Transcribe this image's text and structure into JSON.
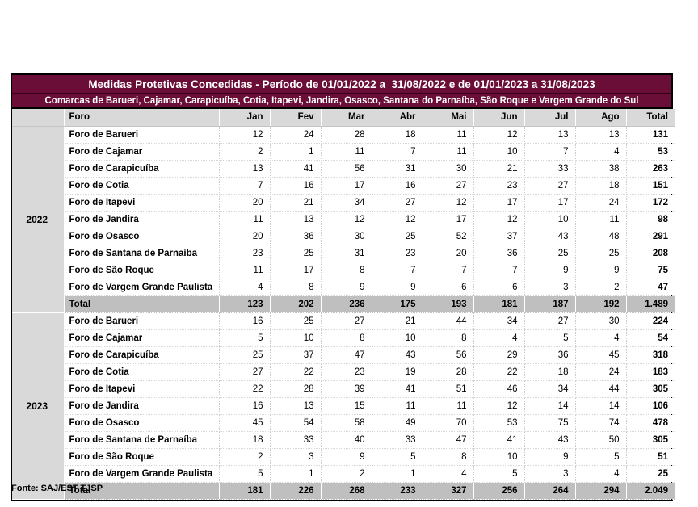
{
  "report": {
    "title": "Medidas Protetivas Concedidas - Período de 01/01/2022 a  31/08/2022 e de 01/01/2023 a 31/08/2023",
    "subtitle": "Comarcas de Barueri, Cajamar, Carapicuíba, Cotia, Itapevi, Jandira, Osasco, Santana do Parnaíba, São Roque e Vargem Grande do Sul",
    "source": "Fonte: SAJ/EST TJSP"
  },
  "colors": {
    "title_bg": "#6A0D37",
    "title_text": "#FFFFFF",
    "header_row_bg": "#D9D9D9",
    "year_col_bg": "#D9D9D9",
    "total_row_bg": "#BFBFBF",
    "body_text": "#000000"
  },
  "columns": [
    "Foro",
    "Jan",
    "Fev",
    "Mar",
    "Abr",
    "Mai",
    "Jun",
    "Jul",
    "Ago",
    "Total"
  ],
  "sections": [
    {
      "year": "2022",
      "rows": [
        {
          "foro": "Foro de Barueri",
          "values": [
            "12",
            "24",
            "28",
            "18",
            "11",
            "12",
            "13",
            "13"
          ],
          "total": "131"
        },
        {
          "foro": "Foro de Cajamar",
          "values": [
            "2",
            "1",
            "11",
            "7",
            "11",
            "10",
            "7",
            "4"
          ],
          "total": "53"
        },
        {
          "foro": "Foro de Carapicuíba",
          "values": [
            "13",
            "41",
            "56",
            "31",
            "30",
            "21",
            "33",
            "38"
          ],
          "total": "263"
        },
        {
          "foro": "Foro de Cotia",
          "values": [
            "7",
            "16",
            "17",
            "16",
            "27",
            "23",
            "27",
            "18"
          ],
          "total": "151"
        },
        {
          "foro": "Foro de Itapevi",
          "values": [
            "20",
            "21",
            "34",
            "27",
            "12",
            "17",
            "17",
            "24"
          ],
          "total": "172"
        },
        {
          "foro": "Foro de Jandira",
          "values": [
            "11",
            "13",
            "12",
            "12",
            "17",
            "12",
            "10",
            "11"
          ],
          "total": "98"
        },
        {
          "foro": "Foro de Osasco",
          "values": [
            "20",
            "36",
            "30",
            "25",
            "52",
            "37",
            "43",
            "48"
          ],
          "total": "291"
        },
        {
          "foro": "Foro de Santana de Parnaíba",
          "values": [
            "23",
            "25",
            "31",
            "23",
            "20",
            "36",
            "25",
            "25"
          ],
          "total": "208"
        },
        {
          "foro": "Foro de São Roque",
          "values": [
            "11",
            "17",
            "8",
            "7",
            "7",
            "7",
            "9",
            "9"
          ],
          "total": "75"
        },
        {
          "foro": "Foro de Vargem Grande Paulista",
          "values": [
            "4",
            "8",
            "9",
            "9",
            "6",
            "6",
            "3",
            "2"
          ],
          "total": "47"
        }
      ],
      "total_row": {
        "label": "Total",
        "values": [
          "123",
          "202",
          "236",
          "175",
          "193",
          "181",
          "187",
          "192"
        ],
        "total": "1.489"
      }
    },
    {
      "year": "2023",
      "rows": [
        {
          "foro": "Foro de Barueri",
          "values": [
            "16",
            "25",
            "27",
            "21",
            "44",
            "34",
            "27",
            "30"
          ],
          "total": "224"
        },
        {
          "foro": "Foro de Cajamar",
          "values": [
            "5",
            "10",
            "8",
            "10",
            "8",
            "4",
            "5",
            "4"
          ],
          "total": "54"
        },
        {
          "foro": "Foro de Carapicuíba",
          "values": [
            "25",
            "37",
            "47",
            "43",
            "56",
            "29",
            "36",
            "45"
          ],
          "total": "318"
        },
        {
          "foro": "Foro de Cotia",
          "values": [
            "27",
            "22",
            "23",
            "19",
            "28",
            "22",
            "18",
            "24"
          ],
          "total": "183"
        },
        {
          "foro": "Foro de Itapevi",
          "values": [
            "22",
            "28",
            "39",
            "41",
            "51",
            "46",
            "34",
            "44"
          ],
          "total": "305"
        },
        {
          "foro": "Foro de Jandira",
          "values": [
            "16",
            "13",
            "15",
            "11",
            "11",
            "12",
            "14",
            "14"
          ],
          "total": "106"
        },
        {
          "foro": "Foro de Osasco",
          "values": [
            "45",
            "54",
            "58",
            "49",
            "70",
            "53",
            "75",
            "74"
          ],
          "total": "478"
        },
        {
          "foro": "Foro de Santana de Parnaíba",
          "values": [
            "18",
            "33",
            "40",
            "33",
            "47",
            "41",
            "43",
            "50"
          ],
          "total": "305"
        },
        {
          "foro": "Foro de São Roque",
          "values": [
            "2",
            "3",
            "9",
            "5",
            "8",
            "10",
            "9",
            "5"
          ],
          "total": "51"
        },
        {
          "foro": "Foro de Vargem Grande Paulista",
          "values": [
            "5",
            "1",
            "2",
            "1",
            "4",
            "5",
            "3",
            "4"
          ],
          "total": "25"
        }
      ],
      "total_row": {
        "label": "Total",
        "values": [
          "181",
          "226",
          "268",
          "233",
          "327",
          "256",
          "264",
          "294"
        ],
        "total": "2.049"
      }
    }
  ]
}
